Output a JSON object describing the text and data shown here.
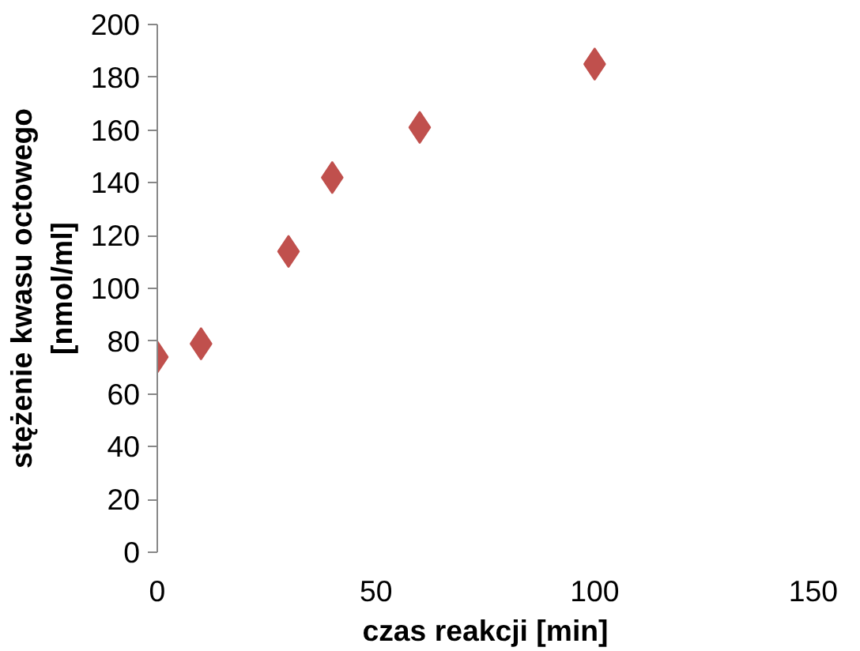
{
  "chart_data": {
    "type": "scatter",
    "xlabel": "czas reakcji [min]",
    "ylabel": "stężenie kwasu octowego\n[nmol/ml]",
    "x": [
      0,
      10,
      30,
      40,
      60,
      100
    ],
    "series": [
      {
        "color": "#c0504d",
        "values": [
          74,
          79,
          114,
          142,
          161,
          185
        ]
      }
    ],
    "xlim": [
      0,
      150
    ],
    "xticks": [
      0,
      50,
      100,
      150
    ],
    "ylim": [
      0,
      200
    ],
    "yticks": [
      0,
      20,
      40,
      60,
      80,
      100,
      120,
      140,
      160,
      180,
      200
    ],
    "grid": false,
    "marker": "diamond"
  }
}
